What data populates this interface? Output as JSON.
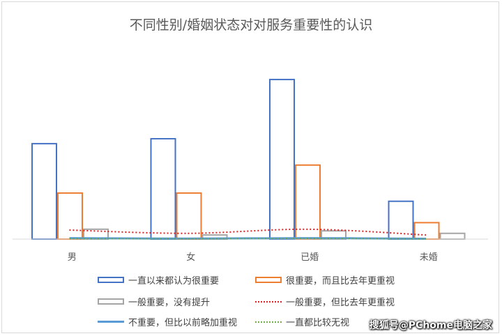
{
  "chart_data": {
    "type": "bar",
    "title": "不同性别/婚姻状态对对服务重要性的认识",
    "categories": [
      "男",
      "女",
      "已婚",
      "未婚"
    ],
    "ylim": [
      0,
      100
    ],
    "grid": false,
    "legend_position": "bottom",
    "series": [
      {
        "name": "一直以来都认为很重要",
        "kind": "bar",
        "color": "#4472c4",
        "values": [
          58,
          61,
          97,
          23
        ]
      },
      {
        "name": "很重要，而且比去年更重视",
        "kind": "bar",
        "color": "#ed7d31",
        "values": [
          28,
          28,
          45,
          10
        ]
      },
      {
        "name": "一般重要，没有提升",
        "kind": "bar",
        "color": "#a5a5a5",
        "values": [
          6,
          2.5,
          5,
          3.5
        ]
      },
      {
        "name": "一般重要，但比去年更重视",
        "kind": "line-dotted",
        "color": "#e02020",
        "values": [
          5.5,
          3.5,
          6,
          2.5
        ]
      },
      {
        "name": "不重要，但比以前略加重视",
        "kind": "line",
        "color": "#5b9bd5",
        "values": [
          0.6,
          0.3,
          0.6,
          0.2
        ]
      },
      {
        "name": "一直都比较无视",
        "kind": "line-dotted",
        "color": "#70ad47",
        "values": [
          0.3,
          0.2,
          0.4,
          0.1
        ]
      }
    ]
  },
  "watermark": "搜狐号@PChome电脑之家"
}
